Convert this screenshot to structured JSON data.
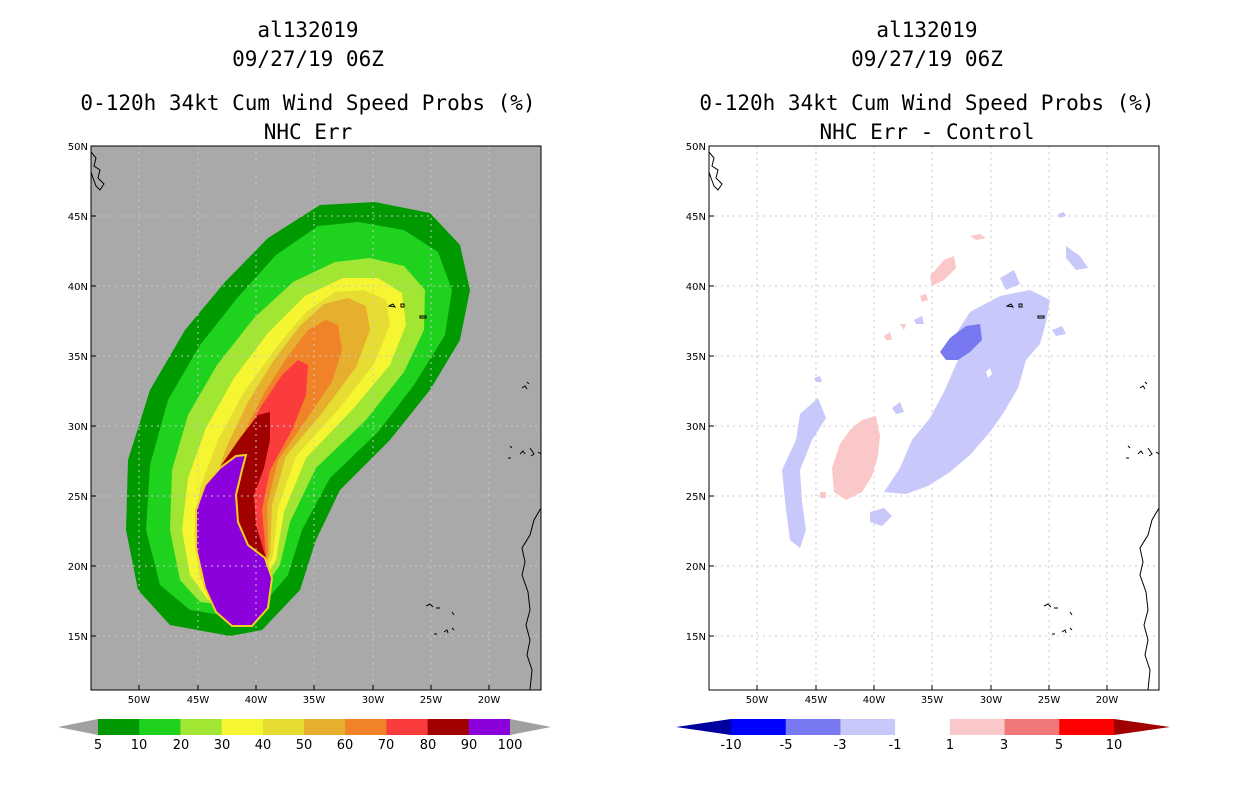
{
  "left_panel": {
    "storm_id": "al132019",
    "datetime": "09/27/19 06Z",
    "product": "0-120h 34kt Cum Wind Speed Probs (%)",
    "subtitle": "NHC Err",
    "lat_labels": [
      "50N",
      "45N",
      "40N",
      "35N",
      "30N",
      "25N",
      "20N",
      "15N"
    ],
    "lon_labels": [
      "50W",
      "45W",
      "40W",
      "35W",
      "30W",
      "25W",
      "20W"
    ],
    "colorbar": {
      "labels": [
        "5",
        "10",
        "20",
        "30",
        "40",
        "50",
        "60",
        "70",
        "80",
        "90",
        "100"
      ],
      "colors": [
        "#009a00",
        "#1ed21e",
        "#a0e632",
        "#f5f532",
        "#e6dc32",
        "#e6af2d",
        "#f08228",
        "#fa3c3c",
        "#a00000",
        "#8c00dc"
      ],
      "end_color": "#a0a0a0"
    }
  },
  "right_panel": {
    "storm_id": "al132019",
    "datetime": "09/27/19 06Z",
    "product": "0-120h 34kt Cum Wind Speed Probs (%)",
    "subtitle": "NHC Err - Control",
    "lat_labels": [
      "50N",
      "45N",
      "40N",
      "35N",
      "30N",
      "25N",
      "20N",
      "15N"
    ],
    "lon_labels": [
      "50W",
      "45W",
      "40W",
      "35W",
      "30W",
      "25W",
      "20W"
    ],
    "colorbar": {
      "labels": [
        "-10",
        "-5",
        "-3",
        "-1",
        "1",
        "3",
        "5",
        "10"
      ],
      "colors": [
        "#0000a0",
        "#0000ff",
        "#7878f0",
        "#c8c8fa",
        "#ffffff",
        "#fac8c8",
        "#f07878",
        "#ff0000",
        "#a00000"
      ]
    }
  },
  "colors": {
    "background": "#a9a9a9",
    "grid": "#c8c8c8",
    "coast": "#000000"
  }
}
